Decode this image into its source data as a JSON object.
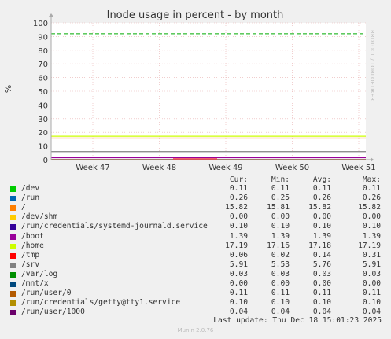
{
  "chart_data": {
    "type": "line",
    "title": "Inode usage in percent - by month",
    "ylabel": "%",
    "ylim": [
      0,
      100
    ],
    "yticks": [
      0,
      10,
      20,
      30,
      40,
      50,
      60,
      70,
      80,
      90,
      100
    ],
    "xticks": [
      "Week 47",
      "Week 48",
      "Week 49",
      "Week 50",
      "Week 51"
    ],
    "warning_line": 92,
    "grid": true,
    "series": [
      {
        "name": "/dev",
        "color": "#00cc00",
        "cur": "0.11",
        "min": "0.11",
        "avg": "0.11",
        "max": "0.11",
        "level": 0.11
      },
      {
        "name": "/run",
        "color": "#0066b3",
        "cur": "0.26",
        "min": "0.25",
        "avg": "0.26",
        "max": "0.26",
        "level": 0.26
      },
      {
        "name": "/",
        "color": "#ff8000",
        "cur": "15.82",
        "min": "15.81",
        "avg": "15.82",
        "max": "15.82",
        "level": 15.82
      },
      {
        "name": "/dev/shm",
        "color": "#ffcc00",
        "cur": "0.00",
        "min": "0.00",
        "avg": "0.00",
        "max": "0.00",
        "level": 0.0
      },
      {
        "name": "/run/credentials/systemd-journald.service",
        "color": "#330099",
        "cur": "0.10",
        "min": "0.10",
        "avg": "0.10",
        "max": "0.10",
        "level": 0.1
      },
      {
        "name": "/boot",
        "color": "#990099",
        "cur": "1.39",
        "min": "1.39",
        "avg": "1.39",
        "max": "1.39",
        "level": 1.39
      },
      {
        "name": "/home",
        "color": "#ccff00",
        "cur": "17.19",
        "min": "17.16",
        "avg": "17.18",
        "max": "17.19",
        "level": 17.19
      },
      {
        "name": "/tmp",
        "color": "#ff0000",
        "cur": "0.06",
        "min": "0.02",
        "avg": "0.14",
        "max": "0.31",
        "level": 0.06
      },
      {
        "name": "/srv",
        "color": "#808080",
        "cur": "5.91",
        "min": "5.53",
        "avg": "5.76",
        "max": "5.91",
        "level": 5.91
      },
      {
        "name": "/var/log",
        "color": "#008f00",
        "cur": "0.03",
        "min": "0.03",
        "avg": "0.03",
        "max": "0.03",
        "level": 0.03
      },
      {
        "name": "/mnt/x",
        "color": "#00487d",
        "cur": "0.00",
        "min": "0.00",
        "avg": "0.00",
        "max": "0.00",
        "level": 0.0
      },
      {
        "name": "/run/user/0",
        "color": "#b35a00",
        "cur": "0.11",
        "min": "0.11",
        "avg": "0.11",
        "max": "0.11",
        "level": 0.11
      },
      {
        "name": "/run/credentials/getty@tty1.service",
        "color": "#b38f00",
        "cur": "0.10",
        "min": "0.10",
        "avg": "0.10",
        "max": "0.10",
        "level": 0.1
      },
      {
        "name": "/run/user/1000",
        "color": "#6b006b",
        "cur": "0.04",
        "min": "0.04",
        "avg": "0.04",
        "max": "0.04",
        "level": 0.04
      }
    ]
  },
  "legend_headers": {
    "cur": "Cur:",
    "min": "Min:",
    "avg": "Avg:",
    "max": "Max:"
  },
  "footer": {
    "last_update": "Last update: Thu Dec 18 15:01:23 2025",
    "munin_version": "Munin 2.0.76"
  },
  "side_label": "RRDTOOL / TOBI OETIKER",
  "colors": {
    "background": "#f0f0f0",
    "plot_bg": "#ffffff",
    "grid": "#e8b0b0",
    "warning": "#00aa00"
  }
}
